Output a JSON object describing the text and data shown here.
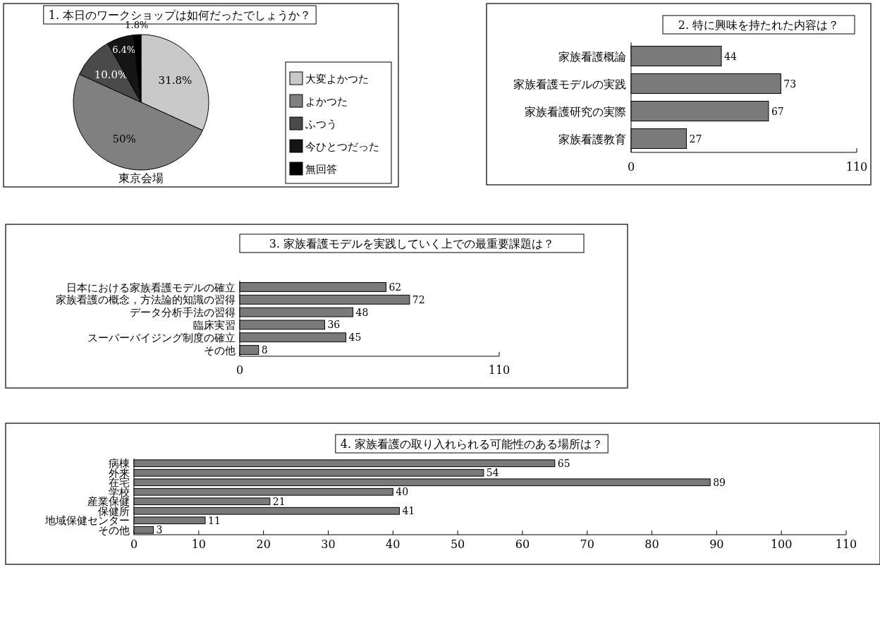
{
  "chart_data": [
    {
      "type": "pie",
      "title": "1. 本日のワークショップは如何だったでしょうか？",
      "categories": [
        "大変よかつた",
        "よかつた",
        "ふつう",
        "今ひとつだった",
        "無回答"
      ],
      "values": [
        31.8,
        50,
        10.0,
        6.4,
        1.8
      ],
      "value_labels": [
        "31.8%",
        "50%",
        "10.0%",
        "6.4%",
        "1.8%"
      ],
      "colors": [
        "#c8c8c8",
        "#808080",
        "#4a4a4a",
        "#151515",
        "#000000"
      ],
      "legend": "right",
      "annotations": [
        "東京会場"
      ]
    },
    {
      "type": "bar",
      "orientation": "horizontal",
      "title": "2. 特に興味を持たれた内容は？",
      "categories": [
        "家族看護概論",
        "家族看護モデルの実践",
        "家族看護研究の実際",
        "家族看護教育"
      ],
      "values": [
        44,
        73,
        67,
        27
      ],
      "color": "#7a7a7a",
      "xlim": [
        0,
        110
      ],
      "xticks": [
        0,
        110
      ],
      "data_labels": true
    },
    {
      "type": "bar",
      "orientation": "horizontal",
      "title": "3. 家族看護モデルを実践していく上での最重要課題は？",
      "categories": [
        "日本における家族看護モデルの確立",
        "家族看護の概念，方法論的知識の習得",
        "データ分析手法の習得",
        "臨床実習",
        "スーパーバイジング制度の確立",
        "その他"
      ],
      "values": [
        62,
        72,
        48,
        36,
        45,
        8
      ],
      "color": "#7a7a7a",
      "xlim": [
        0,
        110
      ],
      "xticks": [
        0,
        110
      ],
      "data_labels": true
    },
    {
      "type": "bar",
      "orientation": "horizontal",
      "title": "4. 家族看護の取り入れられる可能性のある場所は？",
      "categories": [
        "病棟",
        "外来",
        "在宅",
        "学校",
        "産業保健",
        "保健所",
        "地域保健センター",
        "その他"
      ],
      "values": [
        65,
        54,
        89,
        40,
        21,
        41,
        11,
        3
      ],
      "color": "#7a7a7a",
      "xlim": [
        0,
        110
      ],
      "xticks": [
        0,
        10,
        20,
        30,
        40,
        50,
        60,
        70,
        80,
        90,
        100,
        110
      ],
      "data_labels": true
    }
  ]
}
